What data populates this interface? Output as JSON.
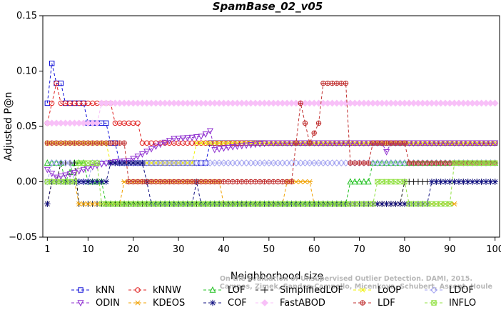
{
  "chart_data": {
    "type": "line",
    "title": "SpamBase_02_v05",
    "xlabel": "Neighborhood size",
    "ylabel": "Adjusted P@n",
    "xlim": [
      0,
      101
    ],
    "ylim": [
      -0.05,
      0.15
    ],
    "xticks": [
      1,
      10,
      20,
      30,
      40,
      50,
      60,
      70,
      80,
      90,
      100
    ],
    "xtick_labels": [
      "1",
      "10",
      "20",
      "30",
      "40",
      "50",
      "60",
      "70",
      "80",
      "90",
      "100"
    ],
    "yticks": [
      -0.05,
      0.0,
      0.05,
      0.1,
      0.15
    ],
    "ytick_labels": [
      "−0.05",
      "0.00",
      "0.05",
      "0.10",
      "0.15"
    ],
    "grid": false,
    "legend_position": "bottom",
    "annotation_line1": "Campos, Zimek, Sander, Campello, Micenkova, Schubert, Assent, Houle",
    "annotation_line2": "On the Evaluation of Unsupervised Outlier Detection. DAMI, 2015.",
    "series": [
      {
        "name": "kNN",
        "color": "#1010d8",
        "marker": "square",
        "segments": [
          [
            1,
            0.071
          ],
          [
            2,
            0.107
          ],
          [
            3,
            0.089
          ],
          [
            4,
            0.089
          ],
          [
            5,
            0.071
          ],
          [
            9,
            0.071
          ],
          [
            10,
            0.053
          ],
          [
            14,
            0.053
          ],
          [
            15,
            0.035
          ],
          [
            16,
            0.035
          ],
          [
            17,
            0.017
          ],
          [
            36,
            0.017
          ],
          [
            37,
            0.035
          ],
          [
            100,
            0.035
          ]
        ]
      },
      {
        "name": "kNNW",
        "color": "#e02020",
        "marker": "circle",
        "segments": [
          [
            1,
            0.053
          ],
          [
            2,
            0.071
          ],
          [
            3,
            0.089
          ],
          [
            4,
            0.071
          ],
          [
            15,
            0.071
          ],
          [
            16,
            0.053
          ],
          [
            21,
            0.053
          ],
          [
            22,
            0.035
          ],
          [
            100,
            0.035
          ]
        ]
      },
      {
        "name": "LOF",
        "color": "#20c020",
        "marker": "triangle-up",
        "segments": [
          [
            1,
            0.017
          ],
          [
            4,
            0.017
          ],
          [
            5,
            0.0
          ],
          [
            7,
            0.017
          ],
          [
            9,
            0.017
          ],
          [
            10,
            0.0
          ],
          [
            13,
            0.0
          ],
          [
            14,
            -0.02
          ],
          [
            67,
            -0.02
          ],
          [
            68,
            0.0
          ],
          [
            72,
            0.0
          ],
          [
            73,
            0.017
          ],
          [
            100,
            0.017
          ]
        ]
      },
      {
        "name": "SimplifiedLOF",
        "color": "#101010",
        "marker": "plus",
        "segments": [
          [
            1,
            -0.02
          ],
          [
            2,
            0.0
          ],
          [
            3,
            0.0
          ],
          [
            4,
            0.017
          ],
          [
            7,
            0.017
          ],
          [
            8,
            -0.02
          ],
          [
            79,
            -0.02
          ],
          [
            80,
            0.0
          ],
          [
            100,
            0.0
          ]
        ]
      },
      {
        "name": "LoOP",
        "color": "#f0f000",
        "marker": "x",
        "segments": [
          [
            1,
            0.035
          ],
          [
            14,
            0.035
          ],
          [
            15,
            0.017
          ],
          [
            33,
            0.017
          ],
          [
            34,
            0.035
          ],
          [
            100,
            0.035
          ]
        ]
      },
      {
        "name": "LDOF",
        "color": "#a0a0f0",
        "marker": "diamond",
        "segments": [
          [
            1,
            0.0
          ],
          [
            2,
            0.017
          ],
          [
            6,
            0.017
          ],
          [
            7,
            0.0
          ],
          [
            10,
            0.0
          ],
          [
            11,
            0.017
          ],
          [
            100,
            0.017
          ]
        ]
      },
      {
        "name": "ODIN",
        "color": "#9030d0",
        "marker": "triangle-down",
        "segments": [
          [
            1,
            0.011
          ],
          [
            3,
            0.004
          ],
          [
            6,
            0.007
          ],
          [
            9,
            0.011
          ],
          [
            13,
            0.016
          ],
          [
            16,
            0.018
          ],
          [
            19,
            0.019
          ],
          [
            22,
            0.025
          ],
          [
            25,
            0.032
          ],
          [
            29,
            0.039
          ],
          [
            33,
            0.04
          ],
          [
            35,
            0.041
          ],
          [
            36,
            0.043
          ],
          [
            37,
            0.046
          ],
          [
            38,
            0.029
          ],
          [
            41,
            0.031
          ],
          [
            45,
            0.033
          ],
          [
            50,
            0.035
          ],
          [
            75,
            0.035
          ],
          [
            76,
            0.027
          ],
          [
            77,
            0.035
          ],
          [
            100,
            0.035
          ]
        ]
      },
      {
        "name": "KDEOS",
        "color": "#f0a000",
        "marker": "asterisk",
        "segments": [
          [
            1,
            -0.02
          ],
          [
            2,
            0.0
          ],
          [
            7,
            0.0
          ],
          [
            8,
            -0.02
          ],
          [
            17,
            -0.02
          ],
          [
            18,
            0.0
          ],
          [
            39,
            0.0
          ],
          [
            40,
            -0.02
          ],
          [
            53,
            -0.02
          ],
          [
            54,
            0.0
          ],
          [
            59,
            0.0
          ],
          [
            60,
            -0.02
          ],
          [
            91,
            -0.02
          ]
        ]
      },
      {
        "name": "COF",
        "color": "#101080",
        "marker": "star",
        "segments": [
          [
            1,
            -0.02
          ],
          [
            2,
            0.0
          ],
          [
            14,
            0.0
          ],
          [
            15,
            0.017
          ],
          [
            22,
            0.017
          ],
          [
            23,
            0.0
          ],
          [
            24,
            -0.02
          ],
          [
            33,
            -0.02
          ],
          [
            34,
            0.0
          ],
          [
            35,
            -0.02
          ],
          [
            85,
            -0.02
          ],
          [
            86,
            0.0
          ],
          [
            100,
            0.0
          ]
        ]
      },
      {
        "name": "FastABOD",
        "color": "#f8c0f8",
        "marker": "diamond-filled",
        "segments": [
          [
            1,
            0.053
          ],
          [
            12,
            0.053
          ],
          [
            13,
            0.071
          ],
          [
            100,
            0.071
          ]
        ]
      },
      {
        "name": "LDF",
        "color": "#c03030",
        "marker": "circle-plus",
        "segments": [
          [
            1,
            0.035
          ],
          [
            18,
            0.035
          ],
          [
            19,
            0.0
          ],
          [
            55,
            0.0
          ],
          [
            56,
            0.035
          ],
          [
            57,
            0.071
          ],
          [
            58,
            0.053
          ],
          [
            59,
            0.035
          ],
          [
            61,
            0.053
          ],
          [
            62,
            0.089
          ],
          [
            67,
            0.089
          ],
          [
            68,
            0.017
          ],
          [
            72,
            0.017
          ],
          [
            73,
            0.035
          ],
          [
            80,
            0.035
          ],
          [
            81,
            0.017
          ],
          [
            100,
            0.017
          ]
        ]
      },
      {
        "name": "INFLO",
        "color": "#90e040",
        "marker": "square-x",
        "segments": [
          [
            1,
            0.0
          ],
          [
            7,
            0.0
          ],
          [
            8,
            0.017
          ],
          [
            12,
            0.017
          ],
          [
            13,
            -0.02
          ],
          [
            73,
            -0.02
          ],
          [
            74,
            0.0
          ],
          [
            80,
            0.0
          ],
          [
            81,
            -0.02
          ],
          [
            90,
            -0.02
          ],
          [
            91,
            0.017
          ],
          [
            100,
            0.017
          ]
        ]
      }
    ]
  }
}
